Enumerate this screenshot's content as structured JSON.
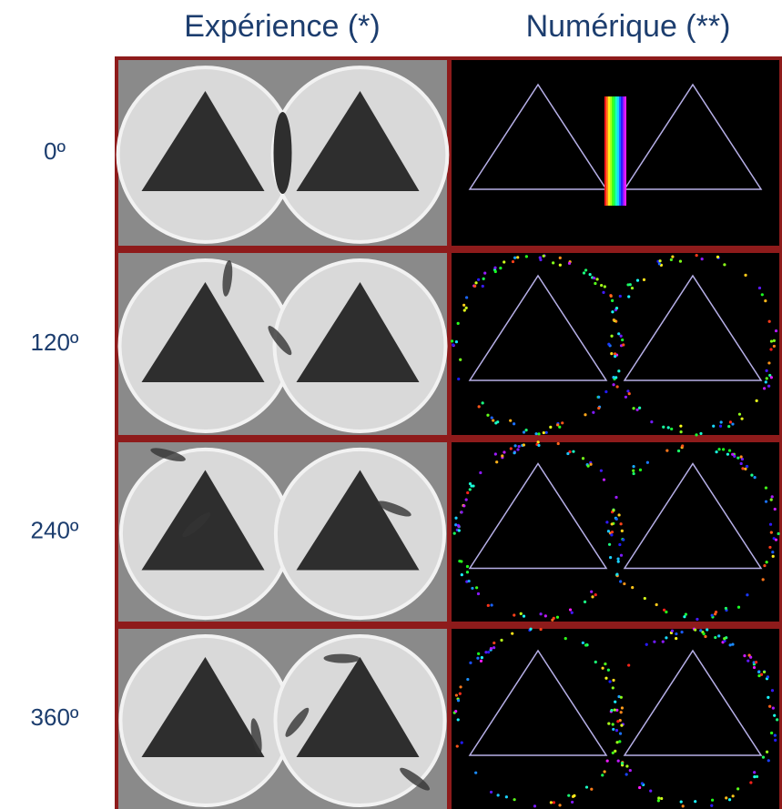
{
  "header": {
    "columns": [
      "Expérience (*)",
      "Numérique (**)"
    ]
  },
  "rows": [
    "0º",
    "120º",
    "240º",
    "360º"
  ]
}
